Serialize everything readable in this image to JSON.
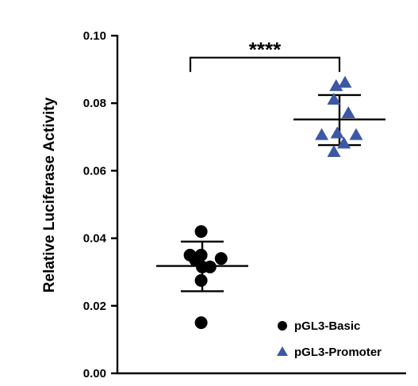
{
  "chart_data": {
    "type": "scatter",
    "ylabel": "Relative Luciferase Activity",
    "ylim": [
      0,
      0.1
    ],
    "yticks": [
      "0.00",
      "0.02",
      "0.04",
      "0.06",
      "0.08",
      "0.10"
    ],
    "grid": false,
    "legend_placement": "bottom-right",
    "series": [
      {
        "name": "pGL3-Basic",
        "marker": "circle",
        "color": "#000000",
        "points": [
          {
            "dx": -0.55,
            "y": 0.035
          },
          {
            "dx": -0.05,
            "y": 0.042
          },
          {
            "dx": -0.05,
            "y": 0.035
          },
          {
            "dx": -0.3,
            "y": 0.0335
          },
          {
            "dx": 0.0,
            "y": 0.0315
          },
          {
            "dx": 0.35,
            "y": 0.0315
          },
          {
            "dx": 0.85,
            "y": 0.034
          },
          {
            "dx": -0.05,
            "y": 0.0275
          },
          {
            "dx": -0.05,
            "y": 0.015
          }
        ],
        "mean": 0.0318,
        "sd_low": 0.0243,
        "sd_high": 0.039
      },
      {
        "name": "pGL3-Promoter",
        "marker": "triangle",
        "color": "#3b57a6",
        "points": [
          {
            "dx": -0.15,
            "y": 0.085
          },
          {
            "dx": 0.25,
            "y": 0.086
          },
          {
            "dx": -0.25,
            "y": 0.081
          },
          {
            "dx": 0.4,
            "y": 0.077
          },
          {
            "dx": -0.1,
            "y": 0.071
          },
          {
            "dx": -0.8,
            "y": 0.0705
          },
          {
            "dx": 0.75,
            "y": 0.0705
          },
          {
            "dx": 0.2,
            "y": 0.068
          },
          {
            "dx": -0.25,
            "y": 0.0655
          }
        ],
        "mean": 0.0752,
        "sd_low": 0.0676,
        "sd_high": 0.0824
      }
    ],
    "significance": {
      "label": "****",
      "y": 0.0935
    }
  }
}
